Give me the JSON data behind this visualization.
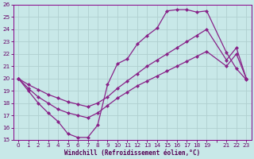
{
  "xlabel": "Windchill (Refroidissement éolien,°C)",
  "xlim_min": -0.5,
  "xlim_max": 23.5,
  "ylim_min": 15,
  "ylim_max": 26,
  "xtick_labels": [
    "0",
    "1",
    "2",
    "3",
    "4",
    "5",
    "6",
    "7",
    "8",
    "9",
    "10",
    "11",
    "12",
    "13",
    "14",
    "15",
    "16",
    "17",
    "18",
    "19",
    "",
    "21",
    "22",
    "23"
  ],
  "xtick_vals": [
    0,
    1,
    2,
    3,
    4,
    5,
    6,
    7,
    8,
    9,
    10,
    11,
    12,
    13,
    14,
    15,
    16,
    17,
    18,
    19,
    20,
    21,
    22,
    23
  ],
  "ytick_vals": [
    15,
    16,
    17,
    18,
    19,
    20,
    21,
    22,
    23,
    24,
    25,
    26
  ],
  "background_color": "#c8e8e8",
  "grid_color": "#b0d0d0",
  "line_color": "#882288",
  "dip_x": [
    0,
    1,
    2,
    3,
    4,
    5,
    6,
    7,
    8,
    9,
    10,
    11,
    12,
    13,
    14,
    15,
    16,
    17,
    18,
    19,
    21,
    22,
    23
  ],
  "dip_y": [
    20,
    19,
    18,
    17.2,
    16.5,
    15.5,
    15.2,
    15.2,
    16.2,
    19.5,
    21.2,
    21.6,
    22.8,
    23.5,
    24.1,
    25.5,
    25.6,
    25.6,
    25.4,
    25.5,
    22.1,
    20.8,
    19.9
  ],
  "mid_x": [
    0,
    1,
    2,
    3,
    4,
    5,
    6,
    7,
    8,
    9,
    10,
    11,
    12,
    13,
    14,
    15,
    16,
    17,
    18,
    19,
    21,
    22,
    23
  ],
  "mid_y": [
    20,
    19.5,
    19.1,
    18.7,
    18.4,
    18.1,
    17.9,
    17.7,
    18.0,
    18.5,
    19.2,
    19.8,
    20.4,
    21.0,
    21.5,
    22.0,
    22.5,
    23.0,
    23.5,
    24.0,
    21.5,
    22.5,
    20.0
  ],
  "low_x": [
    0,
    1,
    2,
    3,
    4,
    5,
    6,
    7,
    8,
    9,
    10,
    11,
    12,
    13,
    14,
    15,
    16,
    17,
    18,
    19,
    21,
    22,
    23
  ],
  "low_y": [
    20,
    19.2,
    18.5,
    18.0,
    17.5,
    17.2,
    17.0,
    16.8,
    17.2,
    17.8,
    18.4,
    18.9,
    19.4,
    19.8,
    20.2,
    20.6,
    21.0,
    21.4,
    21.8,
    22.2,
    21.0,
    22.0,
    20.0
  ]
}
